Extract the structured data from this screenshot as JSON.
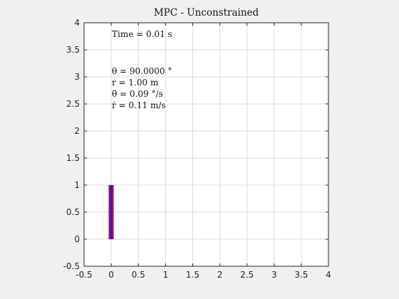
{
  "chart_data": {
    "type": "line",
    "title": "MPC - Unconstrained",
    "xlabel": "",
    "ylabel": "",
    "xlim": [
      -0.5,
      4
    ],
    "ylim": [
      -0.5,
      4
    ],
    "x_ticks": [
      "-0.5",
      "0",
      "0.5",
      "1",
      "1.5",
      "2",
      "2.5",
      "3",
      "3.5",
      "4"
    ],
    "y_ticks": [
      "-0.5",
      "0",
      "0.5",
      "1",
      "1.5",
      "2",
      "2.5",
      "3",
      "3.5",
      "4"
    ],
    "grid": true,
    "annotations": {
      "time": "Time = 0.01 s",
      "theta": "θ = 90.0000 °",
      "r": "r = 1.00 m",
      "theta_dot": "θ̇ = 0.09 °/s",
      "r_dot": "ṙ = 0.11 m/s"
    },
    "pendulum": {
      "base": [
        0,
        0
      ],
      "tip": [
        0,
        1
      ],
      "bar_color": "#ff0000",
      "rod_color": "#1a1aff"
    }
  }
}
